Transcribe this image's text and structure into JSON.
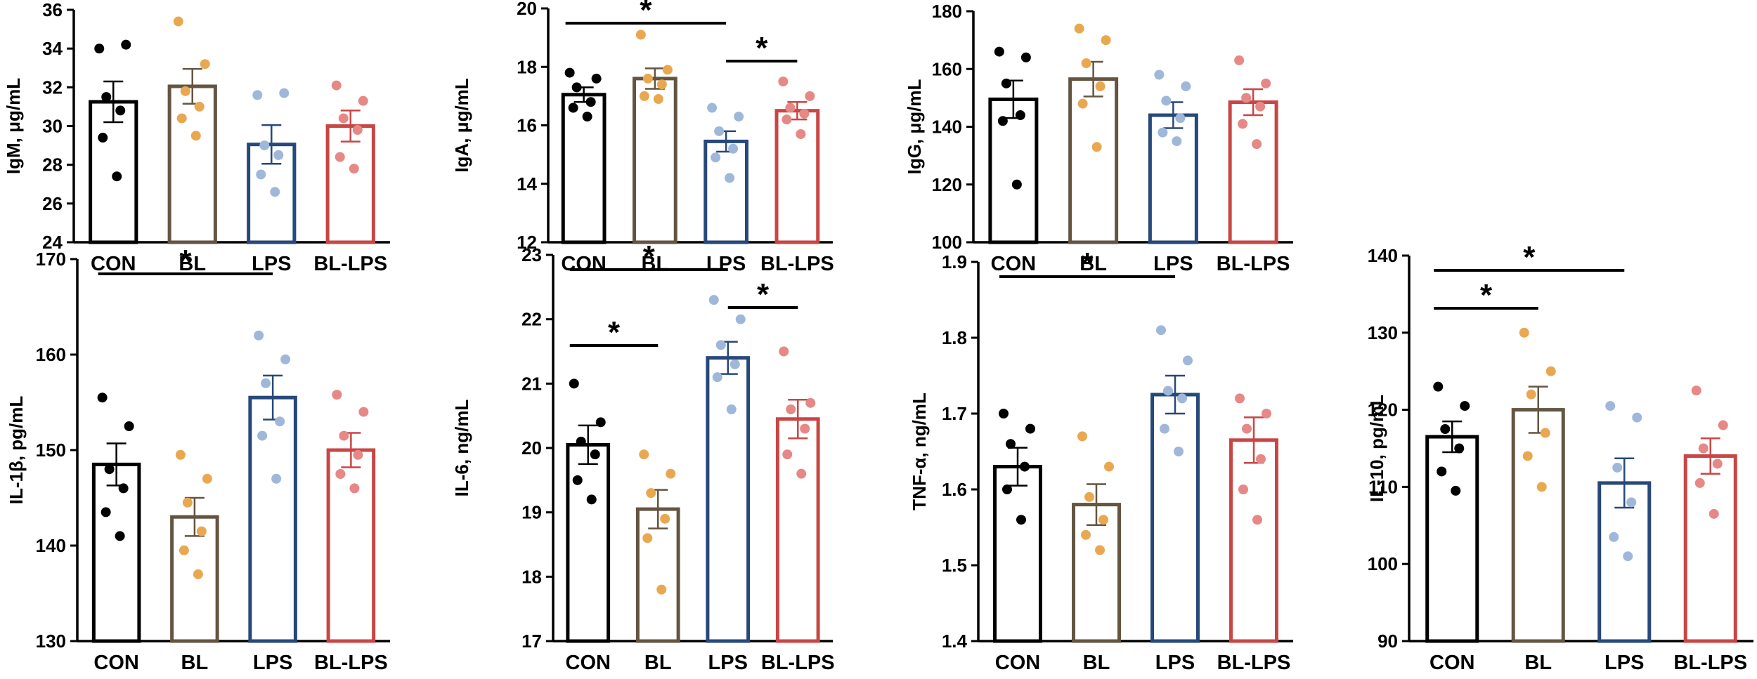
{
  "group_colors": {
    "CON": "#000000",
    "BL": "#645541",
    "LPS": "#27487A",
    "BL-LPS": "#C84644"
  },
  "point_colors": {
    "CON": "#000000",
    "BL": "#E9A850",
    "LPS": "#9FB7D9",
    "BL-LPS": "#E68886"
  },
  "chart_data": [
    {
      "type": "bar",
      "ylabel": "IgM, μg/mL",
      "categories": [
        "CON",
        "BL",
        "LPS",
        "BL-LPS"
      ],
      "ylim": [
        24,
        36
      ],
      "yticks": [
        24,
        26,
        28,
        30,
        32,
        34,
        36
      ],
      "yticklabels": [
        "24",
        "26",
        "28",
        "30",
        "32",
        "34",
        "36"
      ],
      "means": [
        31.25,
        32.05,
        29.05,
        30.0
      ],
      "sem": [
        1.05,
        0.9,
        1.0,
        0.8
      ],
      "points": [
        [
          34.0,
          34.2,
          31.5,
          30.8,
          29.4,
          27.4
        ],
        [
          35.4,
          33.2,
          31.8,
          31.0,
          30.4,
          29.5
        ],
        [
          31.6,
          31.7,
          29.0,
          28.5,
          27.5,
          26.6
        ],
        [
          32.1,
          31.3,
          30.4,
          29.8,
          28.4,
          27.8
        ]
      ],
      "significance": []
    },
    {
      "type": "bar",
      "ylabel": "IgA, μg/mL",
      "categories": [
        "CON",
        "BL",
        "LPS",
        "BL-LPS"
      ],
      "ylim": [
        12,
        20
      ],
      "yticks": [
        12,
        14,
        16,
        18,
        20
      ],
      "yticklabels": [
        "12",
        "14",
        "16",
        "18",
        "20"
      ],
      "means": [
        17.05,
        17.6,
        15.45,
        16.5
      ],
      "sem": [
        0.25,
        0.35,
        0.35,
        0.3
      ],
      "points": [
        [
          17.8,
          17.6,
          17.3,
          16.8,
          16.6,
          16.3
        ],
        [
          19.1,
          17.9,
          17.6,
          17.4,
          17.0,
          16.9
        ],
        [
          16.6,
          16.3,
          15.8,
          15.2,
          14.9,
          14.2
        ],
        [
          17.5,
          17.0,
          16.6,
          16.4,
          16.2,
          15.7
        ]
      ],
      "significance": [
        {
          "from": 0,
          "to": 2,
          "level": 0,
          "label": "*"
        },
        {
          "from": 2,
          "to": 3,
          "level": 1,
          "label": "*"
        }
      ]
    },
    {
      "type": "bar",
      "ylabel": "IgG, μg/mL",
      "categories": [
        "CON",
        "BL",
        "LPS",
        "BL-LPS"
      ],
      "ylim": [
        100,
        180
      ],
      "yticks": [
        100,
        120,
        140,
        160,
        180
      ],
      "yticklabels": [
        "100",
        "120",
        "140",
        "160",
        "180"
      ],
      "means": [
        149.5,
        156.5,
        144.0,
        148.5
      ],
      "sem": [
        6.5,
        6.0,
        4.5,
        4.5
      ],
      "points": [
        [
          166,
          164,
          155,
          144,
          142,
          120
        ],
        [
          174,
          170,
          162,
          154,
          148,
          133
        ],
        [
          158,
          154,
          149,
          143,
          138,
          135
        ],
        [
          163,
          155,
          150,
          147,
          141,
          134
        ]
      ],
      "significance": []
    },
    {
      "type": "bar",
      "ylabel": "IL-1β, pg/mL",
      "categories": [
        "CON",
        "BL",
        "LPS",
        "BL-LPS"
      ],
      "ylim": [
        130,
        170
      ],
      "yticks": [
        130,
        140,
        150,
        160,
        170
      ],
      "yticklabels": [
        "130",
        "140",
        "150",
        "160",
        "170"
      ],
      "means": [
        148.5,
        143.0,
        155.5,
        150.0
      ],
      "sem": [
        2.2,
        2.0,
        2.3,
        1.8
      ],
      "points": [
        [
          155.5,
          152.5,
          148.0,
          146.0,
          143.5,
          141.0
        ],
        [
          149.5,
          147.0,
          144.5,
          141.5,
          139.5,
          137.0
        ],
        [
          162.0,
          159.5,
          157.0,
          153.0,
          151.5,
          147.0
        ],
        [
          155.8,
          154.0,
          151.5,
          149.5,
          147.5,
          146.0
        ]
      ],
      "significance": [
        {
          "from": 0,
          "to": 2,
          "level": 0,
          "label": "*"
        }
      ]
    },
    {
      "type": "bar",
      "ylabel": "IL-6, ng/mL",
      "categories": [
        "CON",
        "BL",
        "LPS",
        "BL-LPS"
      ],
      "ylim": [
        17,
        23
      ],
      "yticks": [
        17,
        18,
        19,
        20,
        21,
        22,
        23
      ],
      "yticklabels": [
        "17",
        "18",
        "19",
        "20",
        "21",
        "22",
        "23"
      ],
      "means": [
        20.05,
        19.05,
        21.4,
        20.45
      ],
      "sem": [
        0.3,
        0.3,
        0.25,
        0.3
      ],
      "points": [
        [
          21.0,
          20.4,
          20.1,
          19.9,
          19.5,
          19.2
        ],
        [
          19.9,
          19.6,
          19.3,
          18.9,
          18.6,
          17.8
        ],
        [
          22.3,
          22.0,
          21.6,
          21.3,
          21.1,
          20.6
        ],
        [
          21.5,
          20.7,
          20.6,
          20.3,
          19.9,
          19.6
        ]
      ],
      "significance": [
        {
          "from": 0,
          "to": 2,
          "level": 0,
          "label": "*"
        },
        {
          "from": 2,
          "to": 3,
          "level": 1,
          "label": "*"
        },
        {
          "from": 0,
          "to": 1,
          "level": 2,
          "label": "*"
        }
      ]
    },
    {
      "type": "bar",
      "ylabel": "TNF-α, ng/mL",
      "categories": [
        "CON",
        "BL",
        "LPS",
        "BL-LPS"
      ],
      "ylim": [
        1.4,
        1.9
      ],
      "yticks": [
        1.4,
        1.5,
        1.6,
        1.7,
        1.8,
        1.9
      ],
      "yticklabels": [
        "1.4",
        "1.5",
        "1.6",
        "1.7",
        "1.8",
        "1.9"
      ],
      "means": [
        1.63,
        1.58,
        1.725,
        1.665
      ],
      "sem": [
        0.025,
        0.027,
        0.025,
        0.03
      ],
      "points": [
        [
          1.7,
          1.68,
          1.66,
          1.63,
          1.6,
          1.56
        ],
        [
          1.67,
          1.63,
          1.59,
          1.56,
          1.54,
          1.52
        ],
        [
          1.81,
          1.77,
          1.73,
          1.72,
          1.68,
          1.65
        ],
        [
          1.72,
          1.7,
          1.68,
          1.64,
          1.6,
          1.56
        ]
      ],
      "significance": [
        {
          "from": 0,
          "to": 2,
          "level": 0,
          "label": "*"
        }
      ]
    },
    {
      "type": "bar",
      "ylabel": "IL-10, pg/mL",
      "categories": [
        "CON",
        "BL",
        "LPS",
        "BL-LPS"
      ],
      "ylim": [
        90,
        140
      ],
      "yticks": [
        90,
        100,
        110,
        120,
        130,
        140
      ],
      "yticklabels": [
        "90",
        "100",
        "110",
        "120",
        "130",
        "140"
      ],
      "means": [
        116.5,
        120.0,
        110.5,
        114.0
      ],
      "sem": [
        2.0,
        3.0,
        3.2,
        2.3
      ],
      "points": [
        [
          123.0,
          120.5,
          117.5,
          115.0,
          112.0,
          109.5
        ],
        [
          130.0,
          125.0,
          122.0,
          117.0,
          114.0,
          110.0
        ],
        [
          120.5,
          119.0,
          112.5,
          108.0,
          103.5,
          101.0
        ],
        [
          122.5,
          118.0,
          115.0,
          113.0,
          110.5,
          106.5
        ]
      ],
      "significance": [
        {
          "from": 0,
          "to": 2,
          "level": 0,
          "label": "*"
        },
        {
          "from": 0,
          "to": 1,
          "level": 1,
          "label": "*"
        }
      ]
    }
  ]
}
